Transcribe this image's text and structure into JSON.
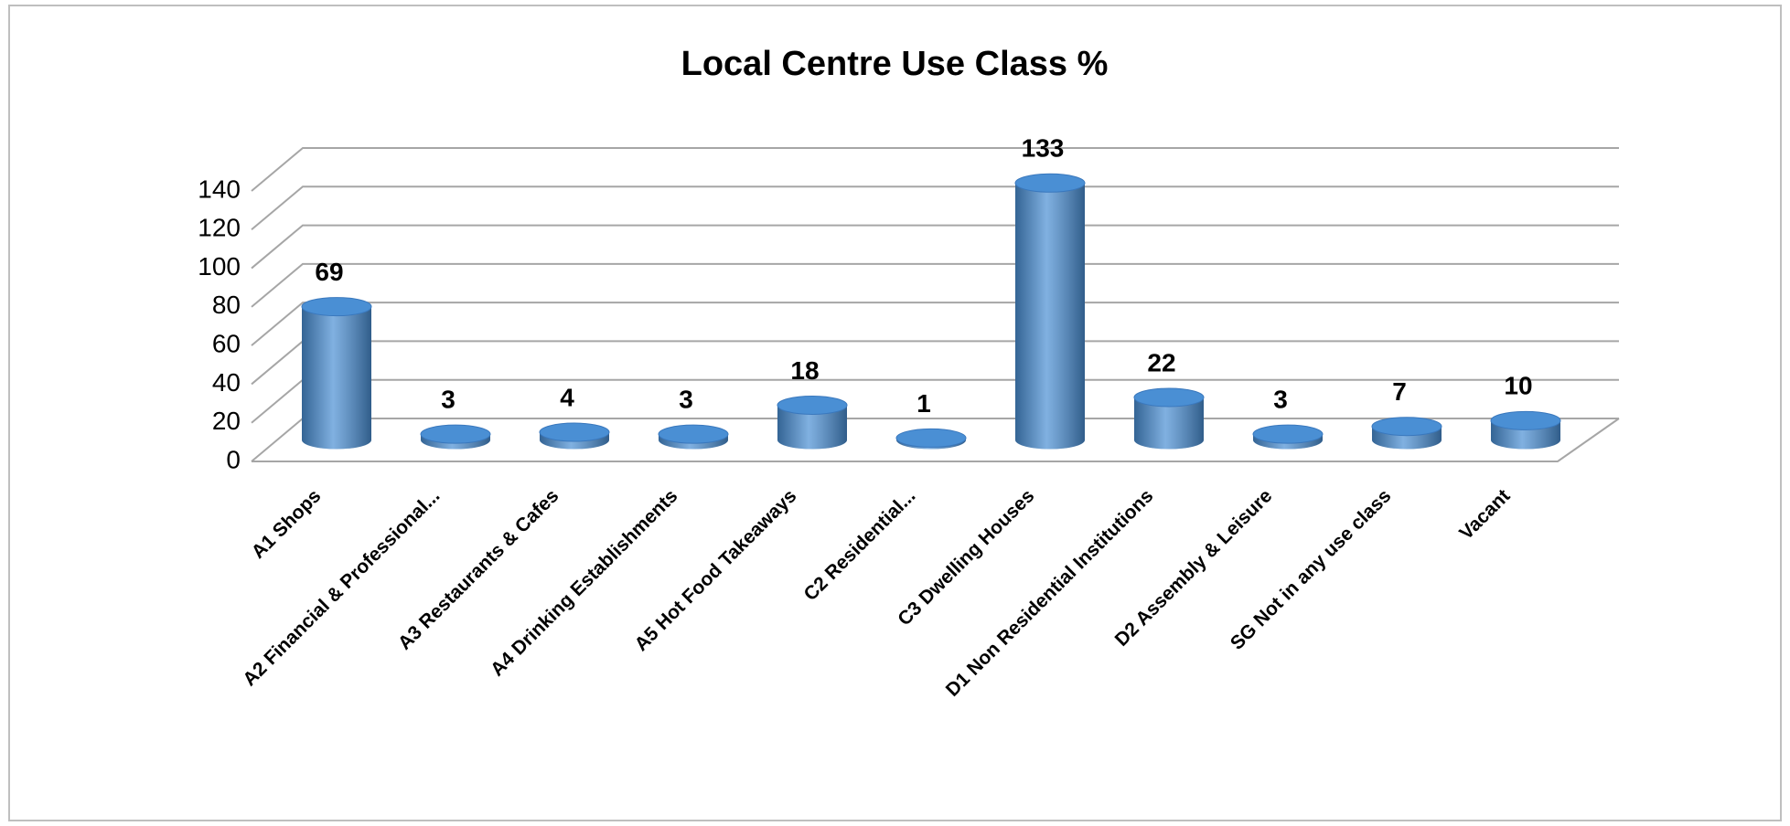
{
  "chart_data": {
    "type": "bar",
    "title": "Local Centre Use Class %",
    "categories": [
      "A1 Shops",
      "A2 Financial & Professional...",
      "A3 Restaurants & Cafes",
      "A4 Drinking Establishments",
      "A5 Hot Food Takeaways",
      "C2 Residential...",
      "C3 Dwelling Houses",
      "D1 Non Residential Institutions",
      "D2 Assembly & Leisure",
      "SG Not in any use class",
      "Vacant"
    ],
    "values": [
      69,
      3,
      4,
      3,
      18,
      1,
      133,
      22,
      3,
      7,
      10
    ],
    "color": "#4a8fd4",
    "ylim": [
      0,
      140
    ],
    "yticks": [
      0,
      20,
      40,
      60,
      80,
      100,
      120,
      140
    ],
    "grid": true
  }
}
